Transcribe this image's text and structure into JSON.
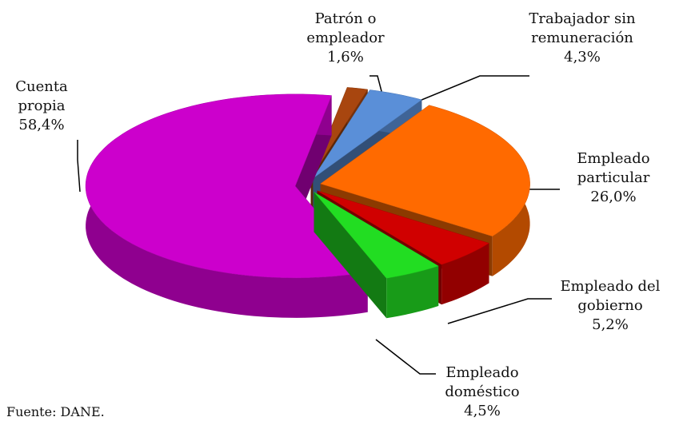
{
  "chart_data": {
    "type": "pie3d",
    "categories": [
      "Patrón o empleador",
      "Trabajador sin remuneración",
      "Empleado particular",
      "Empleado del gobierno",
      "Empleado doméstico",
      "Cuenta propia"
    ],
    "values": [
      1.6,
      4.3,
      26.0,
      5.2,
      4.5,
      58.4
    ],
    "value_labels": [
      "1,6%",
      "4,3%",
      "26,0%",
      "5,2%",
      "4,5%",
      "58,4%"
    ],
    "colors": [
      "#a8460f",
      "#5a8fd8",
      "#ff6a00",
      "#d00000",
      "#22dd22",
      "#cc00cc"
    ],
    "source": "Fuente: DANE."
  }
}
